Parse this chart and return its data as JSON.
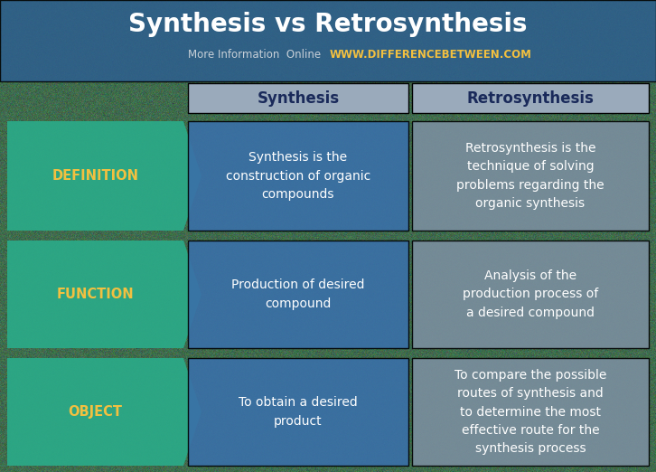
{
  "title": "Synthesis vs Retrosynthesis",
  "subtitle_plain": "More Information  Online  ",
  "subtitle_url": "WWW.DIFFERENCEBETWEEN.COM",
  "col1_header": "Synthesis",
  "col2_header": "Retrosynthesis",
  "rows": [
    {
      "label": "DEFINITION",
      "col1": "Synthesis is the\nconstruction of organic\ncompounds",
      "col2": "Retrosynthesis is the\ntechnique of solving\nproblems regarding the\norganic synthesis"
    },
    {
      "label": "FUNCTION",
      "col1": "Production of desired\ncompound",
      "col2": "Analysis of the\nproduction process of\na desired compound"
    },
    {
      "label": "OBJECT",
      "col1": "To obtain a desired\nproduct",
      "col2": "To compare the possible\nroutes of synthesis and\nto determine the most\neffective route for the\nsynthesis process"
    }
  ],
  "colors": {
    "title_bg": "#2e5f8e",
    "title_text": "#ffffff",
    "subtitle_plain": "#c8d0d8",
    "subtitle_url": "#f2c040",
    "header_bg": "#9aaabb",
    "header_text": "#1a2a5a",
    "arrow_bg": "#2baa88",
    "arrow_text": "#f2c040",
    "col1_bg": "#3a70a8",
    "col1_text": "#ffffff",
    "col2_bg": "#7a8e9e",
    "col2_text": "#ffffff",
    "bg_overlay": "#3d6b52"
  },
  "fig_width": 7.26,
  "fig_height": 5.22,
  "dpi": 100
}
